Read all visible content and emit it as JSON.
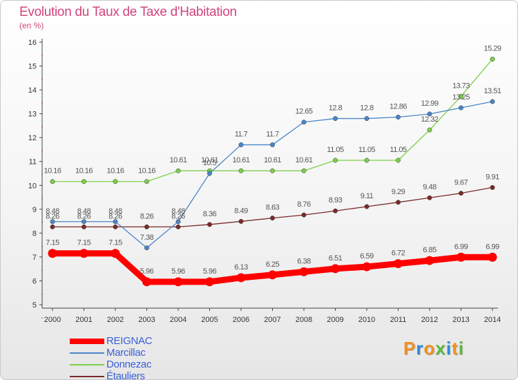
{
  "header": {
    "title": "Evolution du Taux de Taxe d'Habitation",
    "subtitle": "(en %)"
  },
  "logo": {
    "text": "Proxiti",
    "letters": [
      "P",
      "r",
      "o",
      "x",
      "i",
      "t",
      "i"
    ],
    "colors": [
      "#f09020",
      "#2a8bd8",
      "#f09020",
      "#5db83a",
      "#2a8bd8",
      "#f09020",
      "#5db83a"
    ]
  },
  "chart_data": {
    "type": "line",
    "title": "Evolution du Taux de Taxe d'Habitation",
    "ylabel": "(en %)",
    "xlabel": "",
    "x": [
      2000,
      2001,
      2002,
      2003,
      2004,
      2005,
      2006,
      2007,
      2008,
      2009,
      2010,
      2011,
      2012,
      2013,
      2014
    ],
    "ylim": [
      5,
      16
    ],
    "yticks": [
      5,
      6,
      7,
      8,
      9,
      10,
      11,
      12,
      13,
      14,
      15,
      16
    ],
    "grid": false,
    "legend_position": "bottom-left",
    "series": [
      {
        "name": "REIGNAC",
        "color": "#ff0000",
        "emphasis": true,
        "values": [
          7.15,
          7.15,
          7.15,
          5.96,
          5.96,
          5.96,
          6.13,
          6.25,
          6.38,
          6.51,
          6.59,
          6.72,
          6.85,
          6.99,
          6.99
        ]
      },
      {
        "name": "Marcillac",
        "color": "#4a86c8",
        "values": [
          8.48,
          8.48,
          8.48,
          7.38,
          8.48,
          10.5,
          11.7,
          11.7,
          12.65,
          12.8,
          12.8,
          12.86,
          12.99,
          13.25,
          13.51
        ],
        "labels": [
          "8.48",
          "8.48",
          "8.48",
          "7.38",
          "8.48",
          "10.5",
          "11.7",
          "11.7",
          "12.65",
          "12.8",
          "12.8",
          "12.86",
          "12.99",
          "13.25",
          "13.51"
        ]
      },
      {
        "name": "Donnezac",
        "color": "#7ed048",
        "values": [
          10.16,
          10.16,
          10.16,
          10.16,
          10.61,
          10.61,
          10.61,
          10.61,
          10.61,
          11.05,
          11.05,
          11.05,
          12.32,
          13.73,
          15.29
        ]
      },
      {
        "name": "Étauliers",
        "color": "#7a2a2a",
        "values": [
          8.26,
          8.26,
          8.26,
          8.26,
          8.26,
          8.36,
          8.49,
          8.63,
          8.76,
          8.93,
          9.11,
          9.29,
          9.48,
          9.67,
          9.91
        ]
      }
    ]
  }
}
